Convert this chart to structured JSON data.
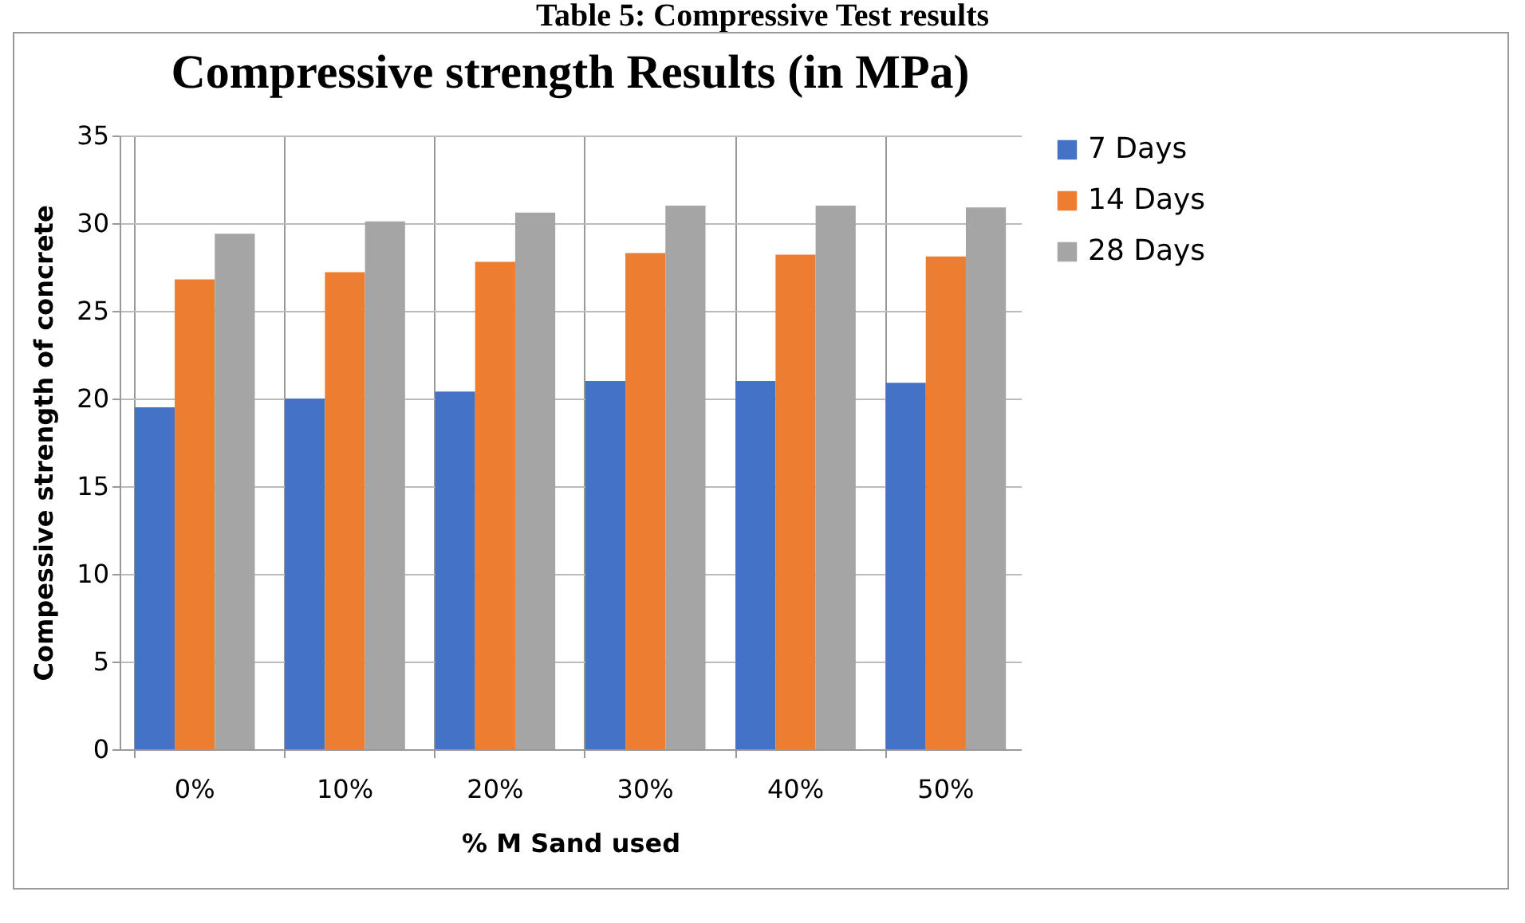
{
  "chart_data": {
    "type": "bar",
    "title": "Compressive strength Results (in MPa)",
    "annotations": [
      "Table 5: Compressive Test results"
    ],
    "xlabel": "% M Sand used",
    "ylabel": "Compessive strength of concrete",
    "categories": [
      "0%",
      "10%",
      "20%",
      "30%",
      "40%",
      "50%"
    ],
    "series": [
      {
        "name": "7 Days",
        "color": "#4472c4",
        "values": [
          19.5,
          20.0,
          20.4,
          21.0,
          21.0,
          20.9
        ]
      },
      {
        "name": "14 Days",
        "color": "#ed7d31",
        "values": [
          26.8,
          27.2,
          27.8,
          28.3,
          28.2,
          28.1
        ]
      },
      {
        "name": "28 Days",
        "color": "#a5a5a5",
        "values": [
          29.4,
          30.1,
          30.6,
          31.0,
          31.0,
          30.9
        ]
      }
    ],
    "ylim": [
      0,
      35
    ],
    "yticks": [
      0,
      5,
      10,
      15,
      20,
      25,
      30,
      35
    ],
    "grid": true,
    "legend": "right"
  }
}
